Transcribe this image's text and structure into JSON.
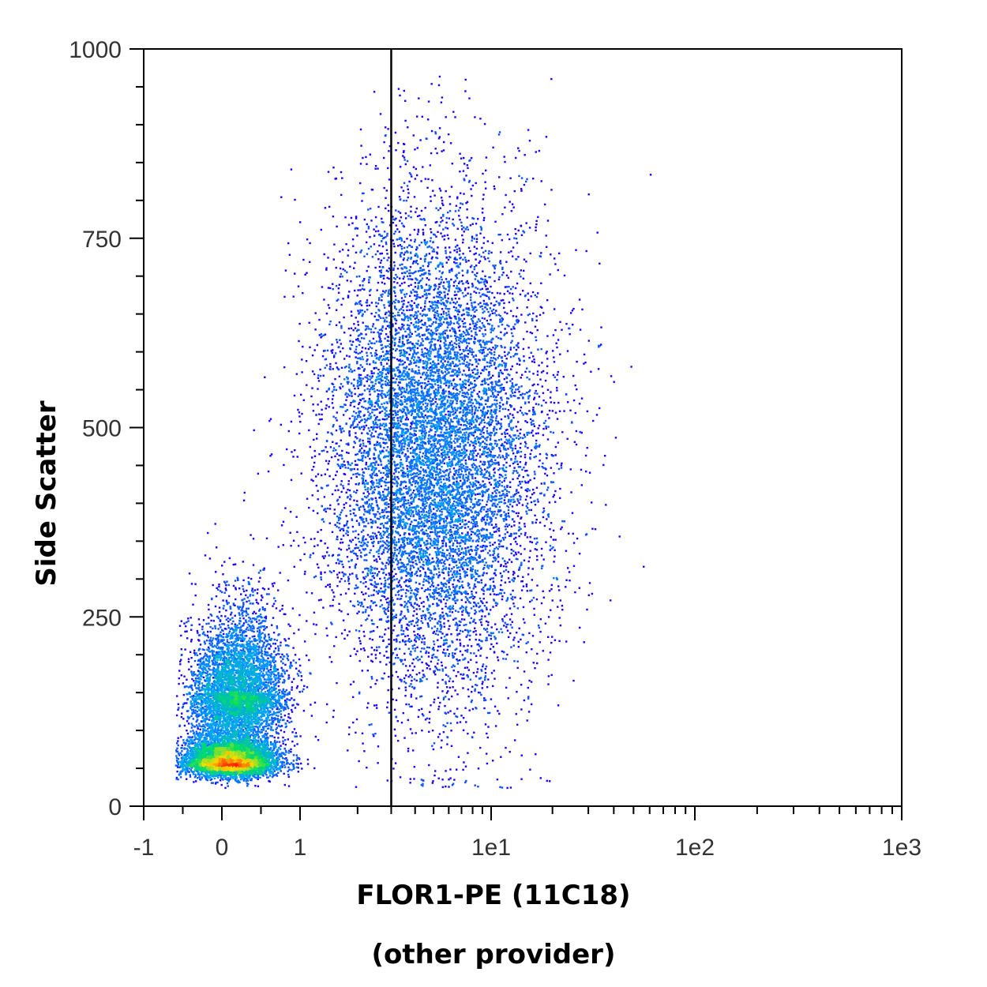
{
  "chart_data": {
    "type": "scatter",
    "subtype": "flow-cytometry density dot plot",
    "xlabel": "FLOR1-PE (11C18)",
    "xlabel_sub": "(other provider)",
    "ylabel": "Side Scatter",
    "x_scale": "biexponential (linear near zero, log above ~1)",
    "x_ticks": [
      "-1",
      "0",
      "1",
      "1e1",
      "1e2",
      "1e3"
    ],
    "x_tick_values": [
      -1,
      0,
      1,
      10,
      100,
      1000
    ],
    "y_ticks": [
      "0",
      "250",
      "500",
      "750",
      "1000"
    ],
    "ylim": [
      0,
      1000
    ],
    "xlim": [
      -1,
      1000
    ],
    "gate_line_x": 3,
    "grid": false,
    "color_scale": [
      "#1a00ff",
      "#00a0ff",
      "#00e060",
      "#ffe000",
      "#ff2000"
    ],
    "populations": [
      {
        "name": "",
        "center_x": 0.1,
        "center_y": 60,
        "spread_x": 0.28,
        "spread_y": 22,
        "weight": 0.3
      },
      {
        "name": "",
        "center_x": 0.2,
        "center_y": 150,
        "spread_x": 0.3,
        "spread_y": 70,
        "weight": 0.22
      },
      {
        "name": "",
        "center_x": 5,
        "center_y": 470,
        "spread_x_log": 0.28,
        "spread_y": 160,
        "weight": 0.48
      }
    ]
  }
}
